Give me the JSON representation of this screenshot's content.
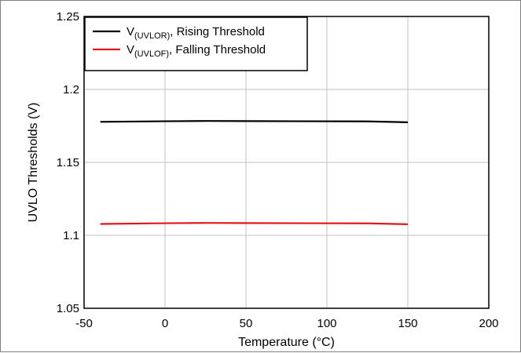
{
  "chart_data": {
    "type": "line",
    "xlabel": "Temperature (°C)",
    "ylabel": "UVLO Thresholds (V)",
    "xlim": [
      -50,
      200
    ],
    "ylim": [
      1.05,
      1.25
    ],
    "x_ticks": [
      -50,
      0,
      50,
      100,
      150,
      200
    ],
    "x_tick_labels": [
      "-50",
      "0",
      "50",
      "100",
      "150",
      "200"
    ],
    "y_ticks": [
      1.05,
      1.1,
      1.15,
      1.2,
      1.25
    ],
    "y_tick_labels": [
      "1.05",
      "1.1",
      "1.15",
      "1.2",
      "1.25"
    ],
    "grid": true,
    "legend_position": "top-left",
    "series": [
      {
        "legend_main": "V",
        "legend_sub": "(UVLOR)",
        "legend_rest": ", Rising Threshold",
        "color": "#000000",
        "x": [
          -40,
          0,
          25,
          50,
          85,
          125,
          150
        ],
        "y": [
          1.1778,
          1.1782,
          1.1784,
          1.1783,
          1.1782,
          1.1781,
          1.1775
        ]
      },
      {
        "legend_main": "V",
        "legend_sub": "(UVLOF)",
        "legend_rest": ", Falling Threshold",
        "color": "#e8141b",
        "x": [
          -40,
          0,
          25,
          50,
          85,
          125,
          150
        ],
        "y": [
          1.1078,
          1.1083,
          1.1085,
          1.1084,
          1.1083,
          1.1082,
          1.1076
        ]
      }
    ]
  }
}
